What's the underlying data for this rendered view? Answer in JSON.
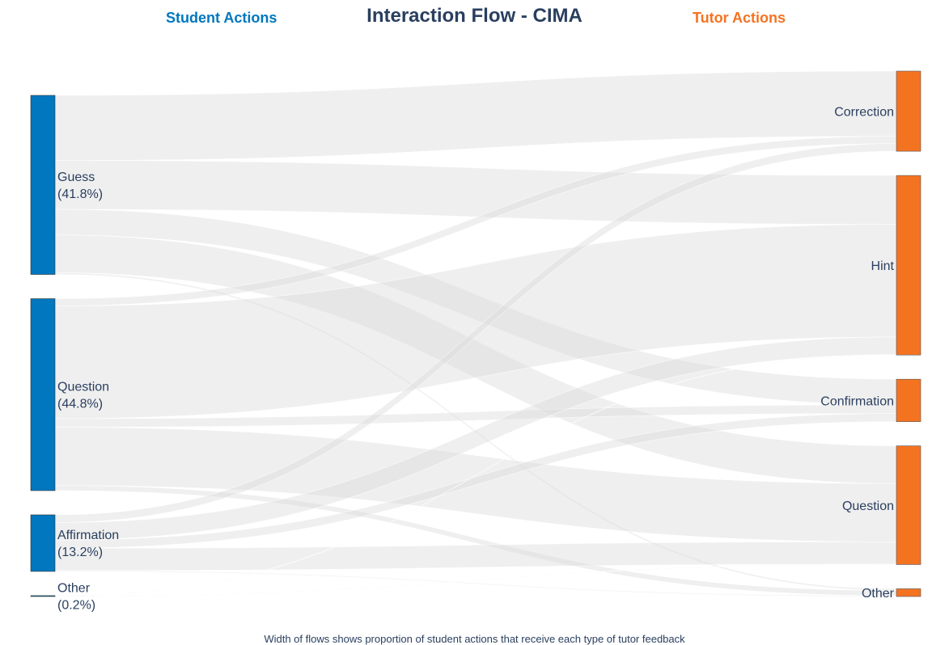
{
  "title": "Interaction Flow - CIMA",
  "left_header": "Student Actions",
  "right_header": "Tutor Actions",
  "footnote": "Width of flows shows proportion of student actions that receive each type of tutor feedback",
  "colors": {
    "student": "#0077be",
    "tutor": "#f47321",
    "link": "#dcdcdc",
    "title": "#2a3f5f"
  },
  "chart_data": {
    "type": "sankey",
    "sources": [
      {
        "name": "Guess",
        "percent": "(41.8%)"
      },
      {
        "name": "Question",
        "percent": "(44.8%)"
      },
      {
        "name": "Affirmation",
        "percent": "(13.2%)"
      },
      {
        "name": "Other",
        "percent": "(0.2%)"
      }
    ],
    "targets": [
      "Correction",
      "Hint",
      "Confirmation",
      "Question",
      "Other"
    ],
    "flows": [
      {
        "source": "Guess",
        "target": "Correction",
        "value": 15.2
      },
      {
        "source": "Guess",
        "target": "Hint",
        "value": 11.4
      },
      {
        "source": "Guess",
        "target": "Confirmation",
        "value": 6.0
      },
      {
        "source": "Guess",
        "target": "Question",
        "value": 8.8
      },
      {
        "source": "Guess",
        "target": "Other",
        "value": 0.4
      },
      {
        "source": "Question",
        "target": "Correction",
        "value": 1.7
      },
      {
        "source": "Question",
        "target": "Hint",
        "value": 26.3
      },
      {
        "source": "Question",
        "target": "Confirmation",
        "value": 2.0
      },
      {
        "source": "Question",
        "target": "Question",
        "value": 13.6
      },
      {
        "source": "Question",
        "target": "Other",
        "value": 1.2
      },
      {
        "source": "Affirmation",
        "target": "Correction",
        "value": 1.8
      },
      {
        "source": "Affirmation",
        "target": "Hint",
        "value": 4.1
      },
      {
        "source": "Affirmation",
        "target": "Confirmation",
        "value": 1.9
      },
      {
        "source": "Affirmation",
        "target": "Question",
        "value": 5.2
      },
      {
        "source": "Affirmation",
        "target": "Other",
        "value": 0.2
      },
      {
        "source": "Other",
        "target": "Hint",
        "value": 0.1
      },
      {
        "source": "Other",
        "target": "Question",
        "value": 0.1
      }
    ]
  }
}
